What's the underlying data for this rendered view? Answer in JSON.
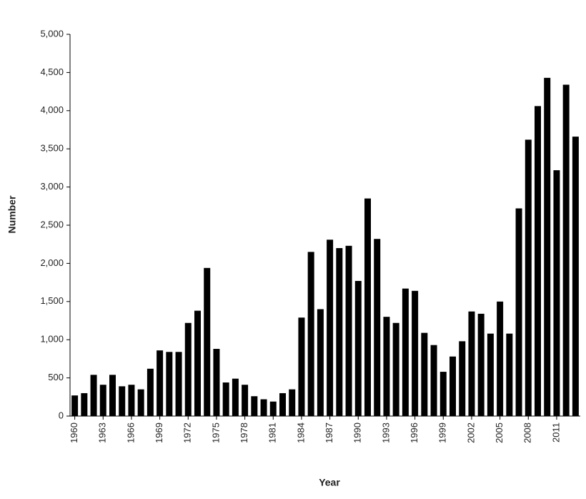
{
  "chart_data": {
    "type": "bar",
    "xlabel": "Year",
    "ylabel": "Number",
    "categories": [
      "1960",
      null,
      null,
      "1963",
      null,
      null,
      "1966",
      null,
      null,
      "1969",
      null,
      null,
      "1972",
      null,
      null,
      "1975",
      null,
      null,
      "1978",
      null,
      null,
      "1981",
      null,
      null,
      "1984",
      null,
      null,
      "1987",
      null,
      null,
      "1990",
      null,
      null,
      "1993",
      null,
      null,
      "1996",
      null,
      null,
      "1999",
      null,
      null,
      "2002",
      null,
      null,
      "2005",
      null,
      null,
      "2008",
      null,
      null,
      "2011",
      null,
      null
    ],
    "values": [
      270,
      300,
      540,
      410,
      540,
      390,
      410,
      350,
      620,
      860,
      840,
      840,
      1220,
      1380,
      1940,
      880,
      440,
      490,
      410,
      260,
      220,
      190,
      300,
      350,
      1290,
      2150,
      1400,
      2310,
      2200,
      2230,
      1770,
      2850,
      2320,
      1300,
      1220,
      1670,
      1640,
      1090,
      930,
      580,
      780,
      980,
      1370,
      1340,
      1080,
      1500,
      1080,
      2720,
      3620,
      4060,
      4430,
      3220,
      4340,
      3660
    ],
    "color": "#000000",
    "ylim": [
      0,
      5000
    ],
    "yticks": [
      0,
      500,
      {
        "value": 1000,
        "label": "1,000"
      },
      {
        "value": 1500,
        "label": "1,500"
      },
      {
        "value": 2000,
        "label": "2,000"
      },
      {
        "value": 2500,
        "label": "2,500"
      },
      {
        "value": 3000,
        "label": "3,000"
      },
      {
        "value": 3500,
        "label": "3,500"
      },
      {
        "value": 4000,
        "label": "4,000"
      },
      {
        "value": 4500,
        "label": "4,500"
      },
      {
        "value": 5000,
        "label": "5,000"
      }
    ],
    "grid": false
  }
}
